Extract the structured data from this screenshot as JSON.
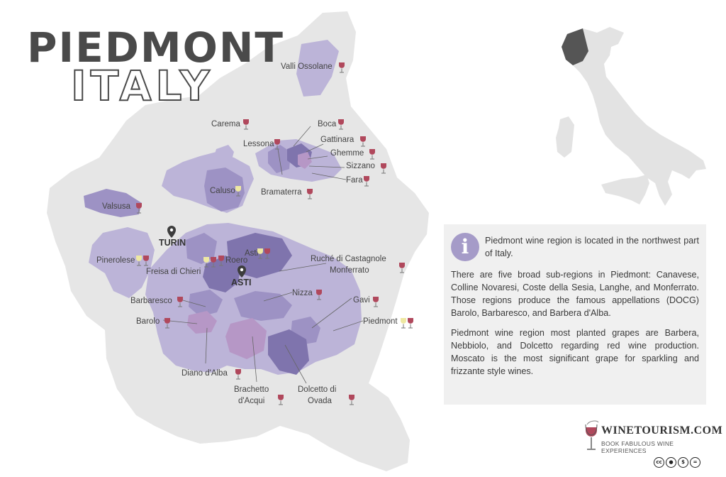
{
  "title": {
    "main": "PIEDMONT",
    "sub": "ITALY"
  },
  "cities": [
    {
      "id": "turin",
      "name": "TURIN"
    },
    {
      "id": "asti",
      "name": "ASTI"
    }
  ],
  "regions": [
    {
      "id": "valli-ossolane",
      "name": "Valli Ossolane",
      "wine": "red"
    },
    {
      "id": "carema",
      "name": "Carema",
      "wine": "red"
    },
    {
      "id": "boca",
      "name": "Boca",
      "wine": "red"
    },
    {
      "id": "lessona",
      "name": "Lessona",
      "wine": "red"
    },
    {
      "id": "gattinara",
      "name": "Gattinara",
      "wine": "red"
    },
    {
      "id": "ghemme",
      "name": "Ghemme",
      "wine": "red"
    },
    {
      "id": "sizzano",
      "name": "Sizzano",
      "wine": "red"
    },
    {
      "id": "fara",
      "name": "Fara",
      "wine": "red"
    },
    {
      "id": "bramaterra",
      "name": "Bramaterra",
      "wine": "red"
    },
    {
      "id": "caluso",
      "name": "Caluso",
      "wine": "white"
    },
    {
      "id": "valsusa",
      "name": "Valsusa",
      "wine": "red"
    },
    {
      "id": "pinerolese",
      "name": "Pinerolese",
      "wine": "white+red"
    },
    {
      "id": "freisa-di-chieri",
      "name": "Freisa di Chieri",
      "wine": "white+red"
    },
    {
      "id": "roero",
      "name": "Roero",
      "wine": "red"
    },
    {
      "id": "asti-docg",
      "name": "Asti",
      "wine": "white+red"
    },
    {
      "id": "ruche",
      "name": "Ruché di Castagnole Monferrato",
      "wine": "red"
    },
    {
      "id": "nizza",
      "name": "Nizza",
      "wine": "red"
    },
    {
      "id": "gavi",
      "name": "Gavi",
      "wine": "red"
    },
    {
      "id": "barbaresco",
      "name": "Barbaresco",
      "wine": "red"
    },
    {
      "id": "barolo",
      "name": "Barolo",
      "wine": "red"
    },
    {
      "id": "piedmont",
      "name": "Piedmont",
      "wine": "white+red"
    },
    {
      "id": "diano-dalba",
      "name": "Diano d'Alba",
      "wine": "red"
    },
    {
      "id": "brachetto",
      "name": "Brachetto d'Acqui",
      "wine": "red"
    },
    {
      "id": "dolcetto-ovada",
      "name": "Dolcetto di Ovada",
      "wine": "red"
    }
  ],
  "info": {
    "icon": "info-icon",
    "p1": "Piedmont wine region is located in the northwest part of Italy.",
    "p2": "There are five broad sub-regions in Piedmont: Canavese, Colline Novaresi, Coste della Sesia, Langhe, and Monferrato. Those regions produce the famous appellations (DOCG) Barolo, Barbaresco, and Barbera d'Alba.",
    "p3": "Piedmont wine region most planted grapes are Barbera, Nebbiolo, and Dolcetto regarding red wine production. Moscato is the most significant grape for sparkling and frizzante style wines."
  },
  "brand": {
    "name": "WINETOURISM.COM",
    "tagline": "BOOK FABULOUS WINE EXPERIENCES"
  },
  "license": [
    "cc",
    "by",
    "nc",
    "nd"
  ],
  "colors": {
    "region_outline": "#e6e6e6",
    "area_light": "#bcb4d8",
    "area_mid": "#9d92c4",
    "area_dark": "#7f74ad",
    "area_pink": "#b697c6",
    "red_wine": "#b0485c",
    "white_wine": "#eee8a2",
    "highlight": "#555555"
  }
}
